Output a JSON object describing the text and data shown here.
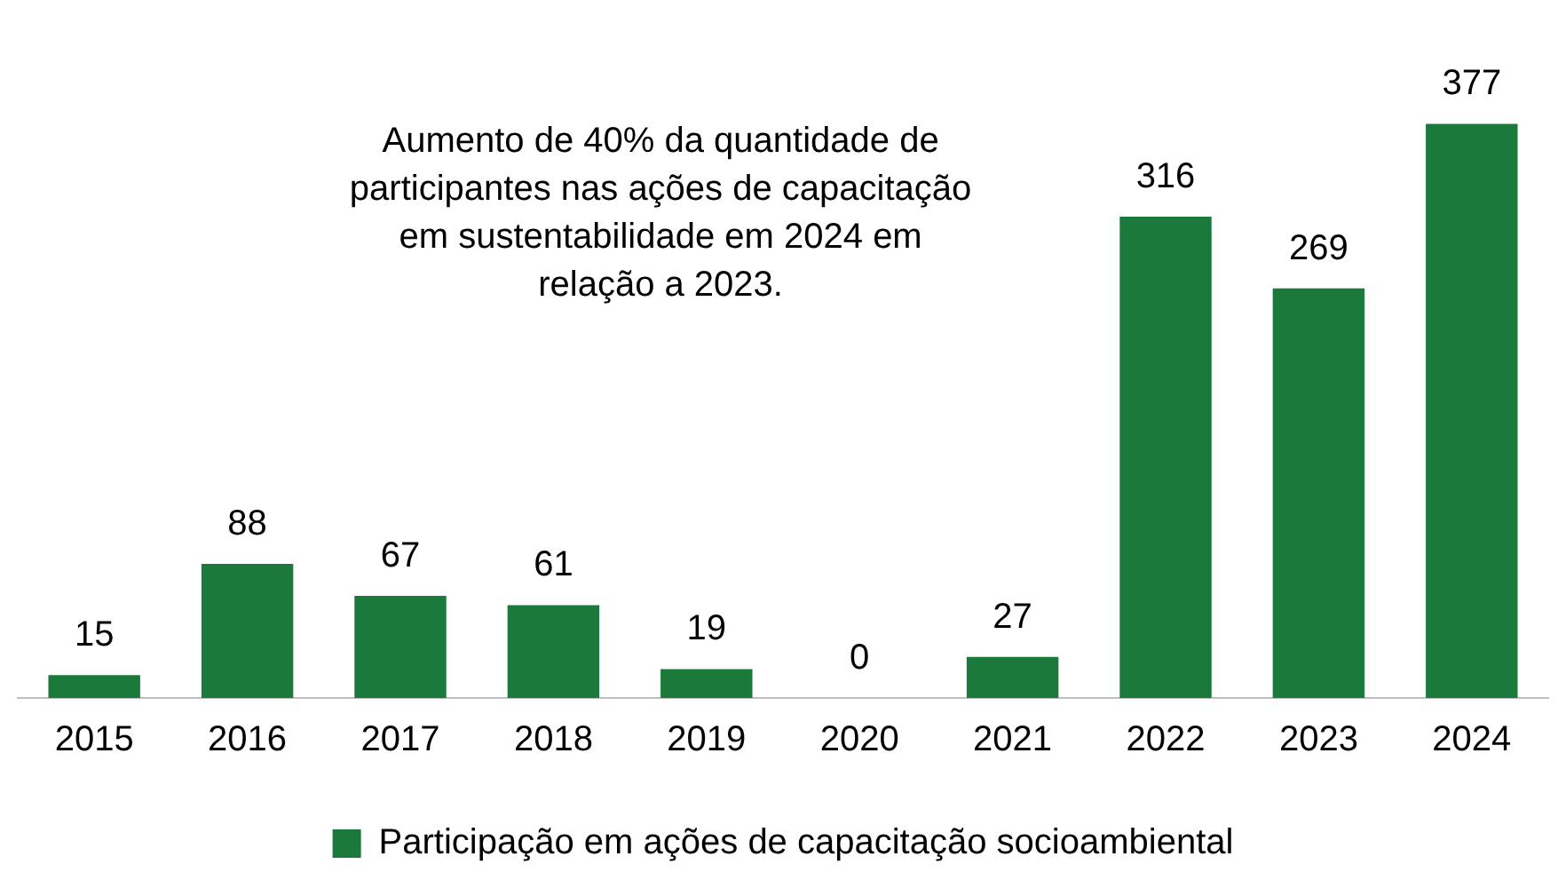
{
  "chart_data": {
    "type": "bar",
    "categories": [
      "2015",
      "2016",
      "2017",
      "2018",
      "2019",
      "2020",
      "2021",
      "2022",
      "2023",
      "2024"
    ],
    "series": [
      {
        "name": "Participação em ações de capacitação socioambiental",
        "color": "#1b7a3b",
        "values": [
          15,
          88,
          67,
          61,
          19,
          0,
          27,
          316,
          269,
          377
        ]
      }
    ],
    "data_labels": true,
    "legend": "bottom",
    "grid": false,
    "annotations": [
      "Aumento de 40% da quantidade de participantes nas ações de capacitação em sustentabilidade em 2024 em relação a 2023."
    ]
  }
}
